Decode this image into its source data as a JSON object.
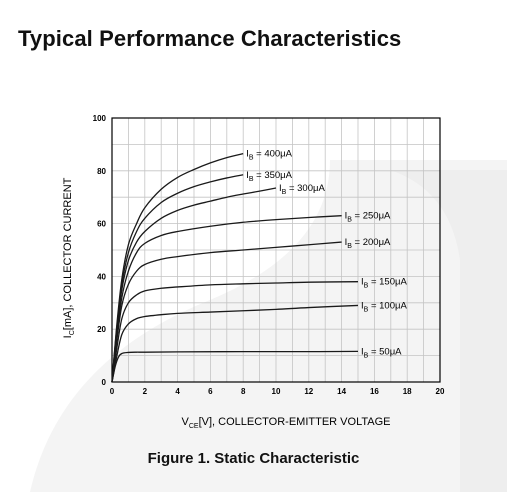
{
  "page": {
    "heading": "Typical Performance Characteristics",
    "caption": "Figure 1. Static Characteristic"
  },
  "colors": {
    "curve": "#1a1a1a",
    "grid": "#c4c4c4",
    "frame": "#000000",
    "watermark": "#f3f3f3"
  },
  "chart_data": {
    "type": "line",
    "title": "",
    "xlabel": {
      "main": "V",
      "sub": "CE",
      "rest": "[V], COLLECTOR-EMITTER VOLTAGE"
    },
    "ylabel": {
      "main": "I",
      "sub": "C",
      "rest": "[mA], COLLECTOR CURRENT"
    },
    "xlim": [
      0,
      20
    ],
    "ylim": [
      0,
      100
    ],
    "x_ticks": [
      {
        "value": 0,
        "label": "0"
      },
      {
        "value": 2,
        "label": "2"
      },
      {
        "value": 4,
        "label": "4"
      },
      {
        "value": 6,
        "label": "6"
      },
      {
        "value": 8,
        "label": "8"
      },
      {
        "value": 10,
        "label": "10"
      },
      {
        "value": 12,
        "label": "12"
      },
      {
        "value": 14,
        "label": "14"
      },
      {
        "value": 16,
        "label": "16"
      },
      {
        "value": 18,
        "label": "18"
      },
      {
        "value": 20,
        "label": "20"
      }
    ],
    "y_ticks": [
      {
        "value": 0,
        "label": "0"
      },
      {
        "value": 20,
        "label": "20"
      },
      {
        "value": 40,
        "label": "40"
      },
      {
        "value": 60,
        "label": "60"
      },
      {
        "value": 80,
        "label": "80"
      },
      {
        "value": 100,
        "label": "100"
      }
    ],
    "grid": true,
    "series": [
      {
        "label_main": "I",
        "label_sub": "B",
        "label_rest": " = 50μA",
        "x": [
          0,
          0.2,
          0.4,
          0.6,
          1,
          1.5,
          2,
          4,
          8,
          12,
          15
        ],
        "y": [
          0,
          6,
          9.5,
          10.8,
          11.2,
          11.3,
          11.3,
          11.4,
          11.5,
          11.5,
          11.6
        ]
      },
      {
        "label_main": "I",
        "label_sub": "B",
        "label_rest": " = 100μA",
        "x": [
          0,
          0.3,
          0.6,
          1,
          1.5,
          2,
          3,
          4,
          6,
          8,
          10,
          12,
          15
        ],
        "y": [
          0,
          10,
          18,
          22,
          24,
          24.8,
          25.5,
          26,
          26.5,
          27,
          27.5,
          28.2,
          29
        ]
      },
      {
        "label_main": "I",
        "label_sub": "B",
        "label_rest": " = 150μA",
        "x": [
          0,
          0.3,
          0.6,
          1,
          1.5,
          2,
          3,
          4,
          6,
          8,
          10,
          12,
          15
        ],
        "y": [
          0,
          13,
          24,
          30,
          33,
          34.5,
          35.5,
          36,
          36.8,
          37.2,
          37.5,
          37.8,
          38
        ]
      },
      {
        "label_main": "I",
        "label_sub": "B",
        "label_rest": " = 200μA",
        "x": [
          0,
          0.3,
          0.6,
          1,
          1.5,
          2,
          3,
          4,
          6,
          8,
          10,
          12,
          14
        ],
        "y": [
          0,
          16,
          29,
          37,
          42,
          44.5,
          46.5,
          47.5,
          49,
          50,
          51,
          52,
          53
        ]
      },
      {
        "label_main": "I",
        "label_sub": "B",
        "label_rest": " = 250μA",
        "x": [
          0,
          0.3,
          0.6,
          1,
          1.5,
          2,
          3,
          4,
          6,
          8,
          10,
          12,
          14
        ],
        "y": [
          0,
          18,
          32,
          42,
          49,
          52.5,
          55.5,
          57,
          59,
          60.5,
          61.5,
          62.3,
          63
        ]
      },
      {
        "label_main": "I",
        "label_sub": "B",
        "label_rest": " = 300μA",
        "x": [
          0,
          0.3,
          0.6,
          1,
          1.5,
          2,
          3,
          4,
          5,
          6,
          7,
          8,
          9,
          10
        ],
        "y": [
          0,
          20,
          35,
          46,
          53,
          57,
          62,
          65,
          67,
          68.5,
          70,
          71.2,
          72.3,
          73.5
        ]
      },
      {
        "label_main": "I",
        "label_sub": "B",
        "label_rest": " = 350μA",
        "x": [
          0,
          0.3,
          0.6,
          1,
          1.5,
          2,
          3,
          4,
          5,
          6,
          7,
          8
        ],
        "y": [
          0,
          21,
          37,
          49,
          57,
          62,
          68,
          71.5,
          74,
          75.8,
          77.3,
          78.5
        ]
      },
      {
        "label_main": "I",
        "label_sub": "B",
        "label_rest": " = 400μA",
        "x": [
          0,
          0.3,
          0.6,
          1,
          1.5,
          2,
          3,
          4,
          5,
          6,
          7,
          8
        ],
        "y": [
          0,
          22,
          39,
          52,
          60,
          66,
          73,
          77.5,
          80.5,
          83,
          85,
          86.5
        ]
      }
    ]
  }
}
